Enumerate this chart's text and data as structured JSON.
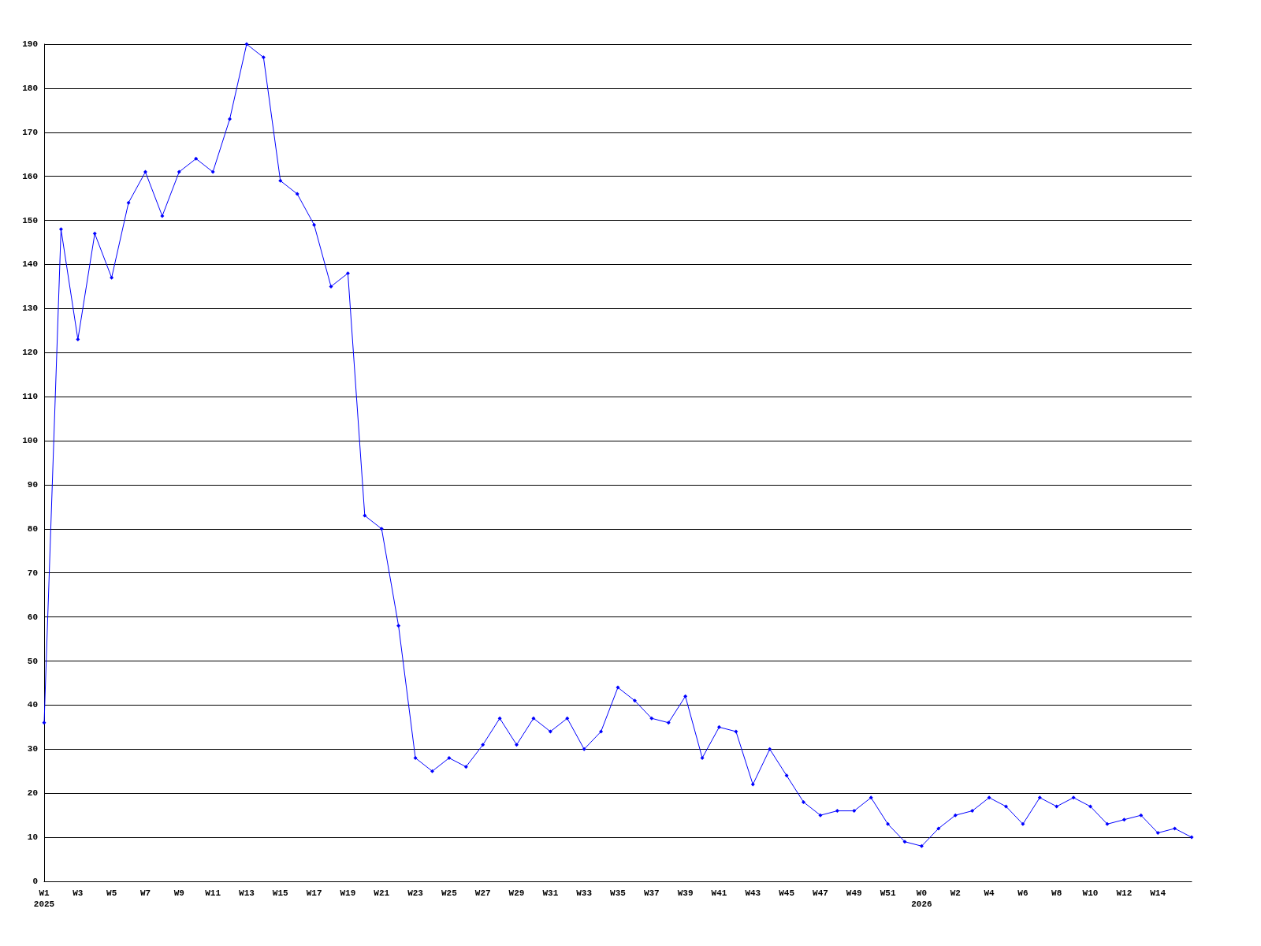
{
  "chart_data": {
    "type": "line",
    "categories": [
      "W1\n2025",
      null,
      "W3",
      null,
      "W5",
      null,
      "W7",
      null,
      "W9",
      null,
      "W11",
      null,
      "W13",
      null,
      "W15",
      null,
      "W17",
      null,
      "W19",
      null,
      "W21",
      null,
      "W23",
      null,
      "W25",
      null,
      "W27",
      null,
      "W29",
      null,
      "W31",
      null,
      "W33",
      null,
      "W35",
      null,
      "W37",
      null,
      "W39",
      null,
      "W41",
      null,
      "W43",
      null,
      "W45",
      null,
      "W47",
      null,
      "W49",
      null,
      "W51",
      null,
      "W0\n2026",
      null,
      "W2",
      null,
      "W4",
      null,
      "W6",
      null,
      "W8",
      null,
      "W10",
      null,
      "W12",
      null,
      "W14",
      null,
      null
    ],
    "series": [
      {
        "color": "#0000ff",
        "values": [
          36,
          148,
          123,
          147,
          137,
          154,
          161,
          151,
          161,
          164,
          161,
          173,
          190,
          187,
          159,
          156,
          149,
          135,
          138,
          83,
          80,
          58,
          28,
          25,
          28,
          26,
          31,
          37,
          31,
          37,
          34,
          37,
          30,
          34,
          44,
          41,
          37,
          36,
          42,
          28,
          35,
          34,
          22,
          30,
          24,
          18,
          15,
          16,
          16,
          19,
          13,
          9,
          8,
          12,
          15,
          16,
          19,
          17,
          13,
          19,
          17,
          19,
          17,
          13,
          14,
          15,
          11,
          12,
          10
        ]
      }
    ],
    "ylim": [
      0,
      190
    ],
    "yticks": [
      0,
      10,
      20,
      30,
      40,
      50,
      60,
      70,
      80,
      90,
      100,
      110,
      120,
      130,
      140,
      150,
      160,
      170,
      180,
      190
    ],
    "grid": "y",
    "marker": "diamond",
    "line_style": "solid"
  }
}
